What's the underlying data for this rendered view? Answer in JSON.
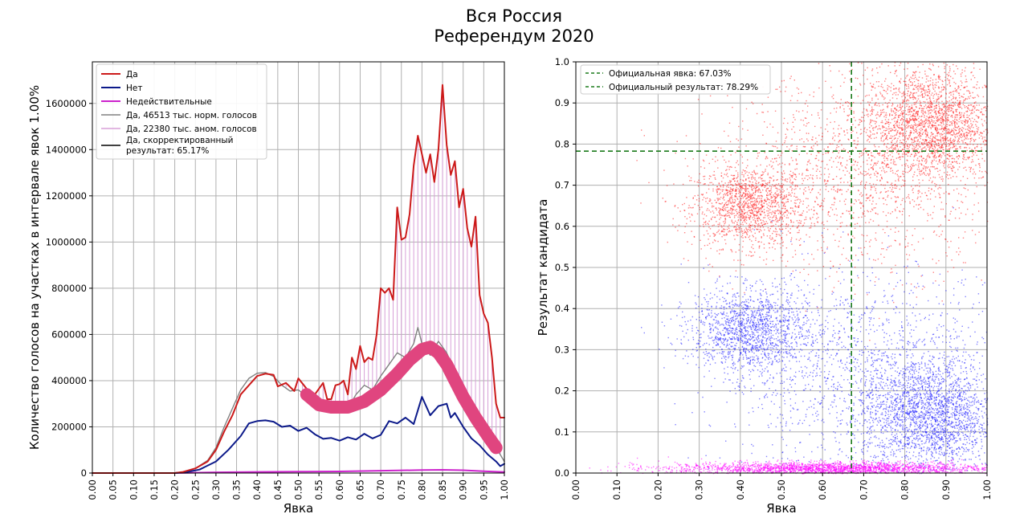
{
  "figure": {
    "title_line1": "Вся Россия",
    "title_line2": "Референдум 2020"
  },
  "chart_data": [
    {
      "type": "line",
      "xlabel": "Явка",
      "ylabel": "Количество голосов на участках в интервале явок 1.00%",
      "xlim": [
        0,
        1
      ],
      "ylim": [
        0,
        1780000
      ],
      "xticks": [
        "0.00",
        "0.05",
        "0.10",
        "0.15",
        "0.20",
        "0.25",
        "0.30",
        "0.35",
        "0.40",
        "0.45",
        "0.50",
        "0.55",
        "0.60",
        "0.65",
        "0.70",
        "0.75",
        "0.80",
        "0.85",
        "0.90",
        "0.95",
        "1.00"
      ],
      "yticks": [
        "0",
        "200000",
        "400000",
        "600000",
        "800000",
        "1000000",
        "1200000",
        "1400000",
        "1600000"
      ],
      "grid": true,
      "legend_position": "top-left",
      "series": [
        {
          "name": "Да",
          "color": "#cc1a1a",
          "points": [
            [
              0,
              0
            ],
            [
              0.2,
              0
            ],
            [
              0.22,
              5000
            ],
            [
              0.25,
              20000
            ],
            [
              0.28,
              50000
            ],
            [
              0.3,
              100000
            ],
            [
              0.32,
              180000
            ],
            [
              0.34,
              250000
            ],
            [
              0.36,
              340000
            ],
            [
              0.38,
              380000
            ],
            [
              0.4,
              420000
            ],
            [
              0.42,
              430000
            ],
            [
              0.44,
              425000
            ],
            [
              0.45,
              375000
            ],
            [
              0.47,
              390000
            ],
            [
              0.49,
              355000
            ],
            [
              0.5,
              410000
            ],
            [
              0.52,
              365000
            ],
            [
              0.54,
              340000
            ],
            [
              0.56,
              390000
            ],
            [
              0.57,
              320000
            ],
            [
              0.58,
              320000
            ],
            [
              0.59,
              380000
            ],
            [
              0.6,
              385000
            ],
            [
              0.61,
              400000
            ],
            [
              0.62,
              340000
            ],
            [
              0.63,
              500000
            ],
            [
              0.64,
              450000
            ],
            [
              0.65,
              550000
            ],
            [
              0.66,
              480000
            ],
            [
              0.67,
              500000
            ],
            [
              0.68,
              490000
            ],
            [
              0.69,
              600000
            ],
            [
              0.7,
              800000
            ],
            [
              0.71,
              780000
            ],
            [
              0.72,
              800000
            ],
            [
              0.73,
              750000
            ],
            [
              0.74,
              1150000
            ],
            [
              0.75,
              1010000
            ],
            [
              0.76,
              1020000
            ],
            [
              0.77,
              1120000
            ],
            [
              0.78,
              1330000
            ],
            [
              0.79,
              1460000
            ],
            [
              0.8,
              1380000
            ],
            [
              0.81,
              1300000
            ],
            [
              0.82,
              1380000
            ],
            [
              0.83,
              1260000
            ],
            [
              0.84,
              1400000
            ],
            [
              0.85,
              1680000
            ],
            [
              0.86,
              1420000
            ],
            [
              0.87,
              1290000
            ],
            [
              0.88,
              1350000
            ],
            [
              0.89,
              1150000
            ],
            [
              0.9,
              1230000
            ],
            [
              0.91,
              1060000
            ],
            [
              0.92,
              980000
            ],
            [
              0.93,
              1110000
            ],
            [
              0.94,
              770000
            ],
            [
              0.95,
              690000
            ],
            [
              0.96,
              650000
            ],
            [
              0.97,
              500000
            ],
            [
              0.98,
              300000
            ],
            [
              0.99,
              240000
            ],
            [
              1.0,
              240000
            ]
          ]
        },
        {
          "name": "Нет",
          "color": "#0c1a8a",
          "points": [
            [
              0,
              0
            ],
            [
              0.2,
              0
            ],
            [
              0.23,
              5000
            ],
            [
              0.26,
              15000
            ],
            [
              0.3,
              50000
            ],
            [
              0.33,
              100000
            ],
            [
              0.36,
              160000
            ],
            [
              0.38,
              215000
            ],
            [
              0.4,
              225000
            ],
            [
              0.42,
              228000
            ],
            [
              0.44,
              222000
            ],
            [
              0.46,
              200000
            ],
            [
              0.48,
              205000
            ],
            [
              0.5,
              182000
            ],
            [
              0.52,
              196000
            ],
            [
              0.54,
              168000
            ],
            [
              0.56,
              148000
            ],
            [
              0.58,
              152000
            ],
            [
              0.6,
              140000
            ],
            [
              0.62,
              155000
            ],
            [
              0.64,
              145000
            ],
            [
              0.66,
              170000
            ],
            [
              0.68,
              150000
            ],
            [
              0.7,
              165000
            ],
            [
              0.72,
              225000
            ],
            [
              0.74,
              215000
            ],
            [
              0.76,
              240000
            ],
            [
              0.78,
              212000
            ],
            [
              0.8,
              330000
            ],
            [
              0.82,
              250000
            ],
            [
              0.84,
              290000
            ],
            [
              0.86,
              300000
            ],
            [
              0.87,
              240000
            ],
            [
              0.88,
              260000
            ],
            [
              0.9,
              200000
            ],
            [
              0.92,
              150000
            ],
            [
              0.94,
              120000
            ],
            [
              0.96,
              80000
            ],
            [
              0.98,
              50000
            ],
            [
              0.99,
              30000
            ],
            [
              1.0,
              40000
            ]
          ]
        },
        {
          "name": "Недействительные",
          "color": "#cc22cc",
          "points": [
            [
              0,
              0
            ],
            [
              0.2,
              0
            ],
            [
              0.3,
              3000
            ],
            [
              0.4,
              5000
            ],
            [
              0.5,
              6000
            ],
            [
              0.6,
              7000
            ],
            [
              0.7,
              10000
            ],
            [
              0.8,
              13000
            ],
            [
              0.85,
              14000
            ],
            [
              0.9,
              12000
            ],
            [
              0.95,
              8000
            ],
            [
              1.0,
              4000
            ]
          ]
        },
        {
          "name": "Да, 46513 тыс. норм. голосов",
          "color": "#808080",
          "points": [
            [
              0,
              0
            ],
            [
              0.2,
              0
            ],
            [
              0.22,
              5000
            ],
            [
              0.25,
              20000
            ],
            [
              0.28,
              55000
            ],
            [
              0.3,
              110000
            ],
            [
              0.32,
              200000
            ],
            [
              0.34,
              280000
            ],
            [
              0.36,
              360000
            ],
            [
              0.38,
              410000
            ],
            [
              0.4,
              432000
            ],
            [
              0.42,
              435000
            ],
            [
              0.44,
              418000
            ],
            [
              0.46,
              380000
            ],
            [
              0.48,
              355000
            ],
            [
              0.5,
              360000
            ],
            [
              0.52,
              330000
            ],
            [
              0.54,
              300000
            ],
            [
              0.56,
              300000
            ],
            [
              0.58,
              280000
            ],
            [
              0.6,
              290000
            ],
            [
              0.62,
              280000
            ],
            [
              0.64,
              340000
            ],
            [
              0.66,
              380000
            ],
            [
              0.68,
              360000
            ],
            [
              0.7,
              420000
            ],
            [
              0.72,
              470000
            ],
            [
              0.74,
              520000
            ],
            [
              0.76,
              500000
            ],
            [
              0.78,
              560000
            ],
            [
              0.79,
              630000
            ],
            [
              0.8,
              560000
            ],
            [
              0.82,
              510000
            ],
            [
              0.84,
              570000
            ],
            [
              0.86,
              520000
            ],
            [
              0.88,
              440000
            ],
            [
              0.9,
              370000
            ],
            [
              0.92,
              300000
            ],
            [
              0.94,
              250000
            ],
            [
              0.96,
              180000
            ],
            [
              0.98,
              110000
            ],
            [
              1.0,
              50000
            ]
          ]
        },
        {
          "name": "Да, 22380 тыс. аном. голосов",
          "color": "#d8a0d8",
          "style": "vertical bars"
        },
        {
          "name": "Да, скорректированный результат: 65.17%",
          "color": "#000000"
        },
        {
          "name": "",
          "color": "#e0457f",
          "points": [
            [
              0.52,
              340000
            ],
            [
              0.55,
              295000
            ],
            [
              0.58,
              285000
            ],
            [
              0.62,
              285000
            ],
            [
              0.66,
              310000
            ],
            [
              0.7,
              360000
            ],
            [
              0.74,
              430000
            ],
            [
              0.77,
              490000
            ],
            [
              0.8,
              535000
            ],
            [
              0.82,
              545000
            ],
            [
              0.84,
              520000
            ],
            [
              0.86,
              470000
            ],
            [
              0.88,
              400000
            ],
            [
              0.9,
              330000
            ],
            [
              0.93,
              240000
            ],
            [
              0.96,
              160000
            ],
            [
              0.98,
              110000
            ]
          ]
        }
      ]
    },
    {
      "type": "scatter",
      "xlabel": "Явка",
      "ylabel": "Результат кандидата",
      "xlim": [
        0,
        1
      ],
      "ylim": [
        0,
        1
      ],
      "xticks": [
        "0.00",
        "0.10",
        "0.20",
        "0.30",
        "0.40",
        "0.50",
        "0.60",
        "0.70",
        "0.80",
        "0.90",
        "1.00"
      ],
      "yticks": [
        "0.0",
        "0.1",
        "0.2",
        "0.3",
        "0.4",
        "0.5",
        "0.6",
        "0.7",
        "0.8",
        "0.9",
        "1.0"
      ],
      "grid": true,
      "legend_position": "top-left",
      "reference_lines": [
        {
          "name": "Официальная явка: 67.03%",
          "orientation": "vertical",
          "value": 0.6703,
          "color": "#1a7a1a",
          "style": "dashed"
        },
        {
          "name": "Официальный результат: 78.29%",
          "orientation": "horizontal",
          "value": 0.7829,
          "color": "#1a7a1a",
          "style": "dashed"
        }
      ],
      "clusters": [
        {
          "color": "#ff1a1a",
          "center": [
            0.42,
            0.65
          ],
          "spread": [
            0.07,
            0.05
          ],
          "weight": 1400
        },
        {
          "color": "#ff1a1a",
          "center": [
            0.86,
            0.85
          ],
          "spread": [
            0.08,
            0.07
          ],
          "weight": 2200
        },
        {
          "color": "#ff1a1a",
          "center": [
            0.7,
            0.73
          ],
          "spread": [
            0.18,
            0.12
          ],
          "weight": 1500
        },
        {
          "color": "#1a1aff",
          "center": [
            0.42,
            0.35
          ],
          "spread": [
            0.07,
            0.05
          ],
          "weight": 1400
        },
        {
          "color": "#1a1aff",
          "center": [
            0.86,
            0.14
          ],
          "spread": [
            0.08,
            0.07
          ],
          "weight": 2200
        },
        {
          "color": "#1a1aff",
          "center": [
            0.7,
            0.25
          ],
          "spread": [
            0.18,
            0.12
          ],
          "weight": 1500
        },
        {
          "color": "#ff00ff",
          "center": [
            0.62,
            0.012
          ],
          "spread": [
            0.2,
            0.008
          ],
          "weight": 2500
        }
      ]
    }
  ]
}
